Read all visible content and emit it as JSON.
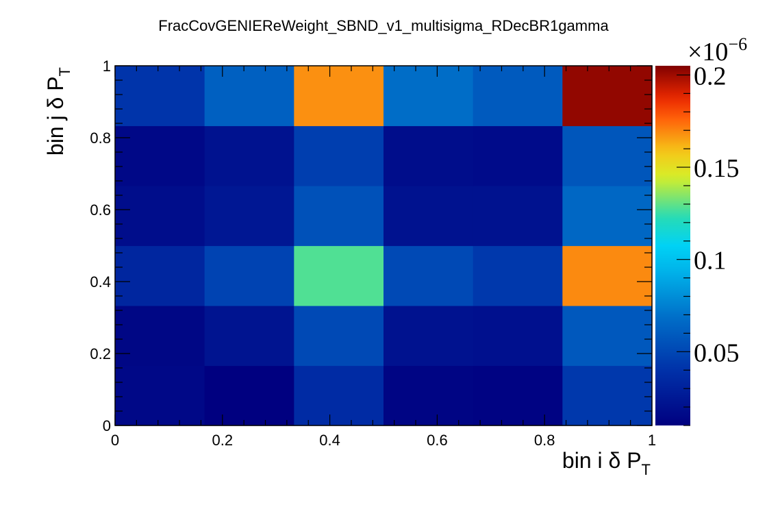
{
  "chart_data": {
    "type": "heatmap",
    "title": "FracCovGENIEReWeight_SBND_v1_multisigma_RDecBR1gamma",
    "xlabel": {
      "main": "bin i δ P",
      "sub": "T"
    },
    "ylabel": {
      "main": "bin j δ P",
      "sub": "T"
    },
    "xlim": [
      0,
      1
    ],
    "ylim": [
      0,
      1
    ],
    "x_ticks": [
      "0",
      "0.2",
      "0.4",
      "0.6",
      "0.8",
      "1"
    ],
    "y_ticks": [
      "0",
      "0.2",
      "0.4",
      "0.6",
      "0.8",
      "1"
    ],
    "x_tick_values": [
      0,
      0.2,
      0.4,
      0.6,
      0.8,
      1
    ],
    "y_tick_values": [
      0,
      0.2,
      0.4,
      0.6,
      0.8,
      1
    ],
    "nbins_x": 6,
    "nbins_y": 6,
    "z_multiplier": "×10",
    "z_exponent": "−6",
    "zlim": [
      0.01,
      0.205
    ],
    "colorbar_ticks": [
      "0.05",
      "0.1",
      "0.15",
      "0.2"
    ],
    "colorbar_tick_values": [
      0.05,
      0.1,
      0.15,
      0.2
    ],
    "values": [
      [
        0.015,
        0.01,
        0.036,
        0.013,
        0.012,
        0.043
      ],
      [
        0.014,
        0.022,
        0.051,
        0.021,
        0.02,
        0.058
      ],
      [
        0.033,
        0.048,
        0.128,
        0.051,
        0.043,
        0.169
      ],
      [
        0.018,
        0.024,
        0.055,
        0.021,
        0.021,
        0.065
      ],
      [
        0.015,
        0.021,
        0.046,
        0.018,
        0.017,
        0.057
      ],
      [
        0.041,
        0.062,
        0.168,
        0.068,
        0.059,
        0.202
      ]
    ]
  }
}
